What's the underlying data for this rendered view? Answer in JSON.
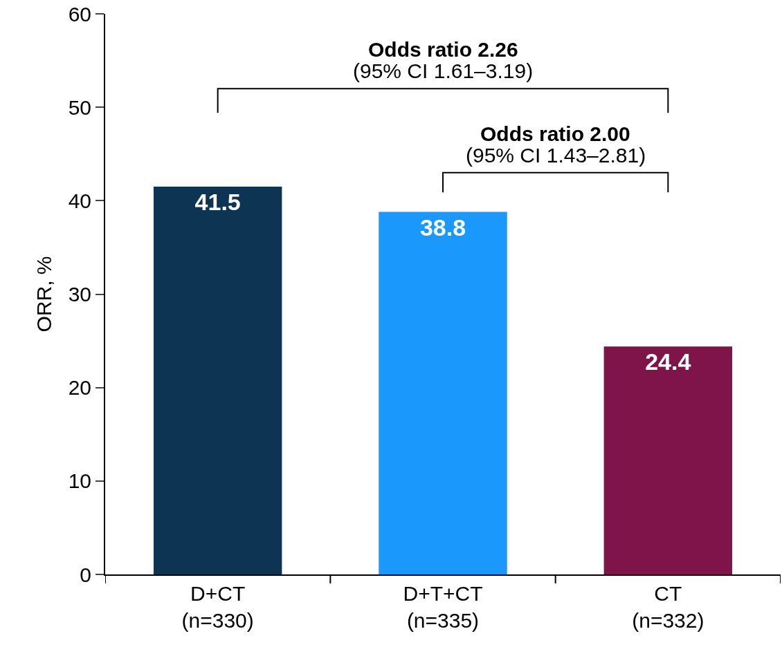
{
  "chart_data": {
    "type": "bar",
    "categories": [
      "D+CT\n(n=330)",
      "D+T+CT\n(n=335)",
      "CT\n(n=332)"
    ],
    "values": [
      41.5,
      38.8,
      24.4
    ],
    "colors": [
      "#0d3453",
      "#1a98fc",
      "#7e1449"
    ],
    "ylabel": "ORR, %",
    "ylim": [
      0,
      60
    ],
    "yticks": [
      0,
      10,
      20,
      30,
      40,
      50,
      60
    ],
    "data_labels": true,
    "annotations": [
      "Odds ratio 2.26",
      "(95% CI 1.61–3.19)",
      "Odds ratio 2.00",
      "(95% CI 1.43–2.81)"
    ]
  }
}
